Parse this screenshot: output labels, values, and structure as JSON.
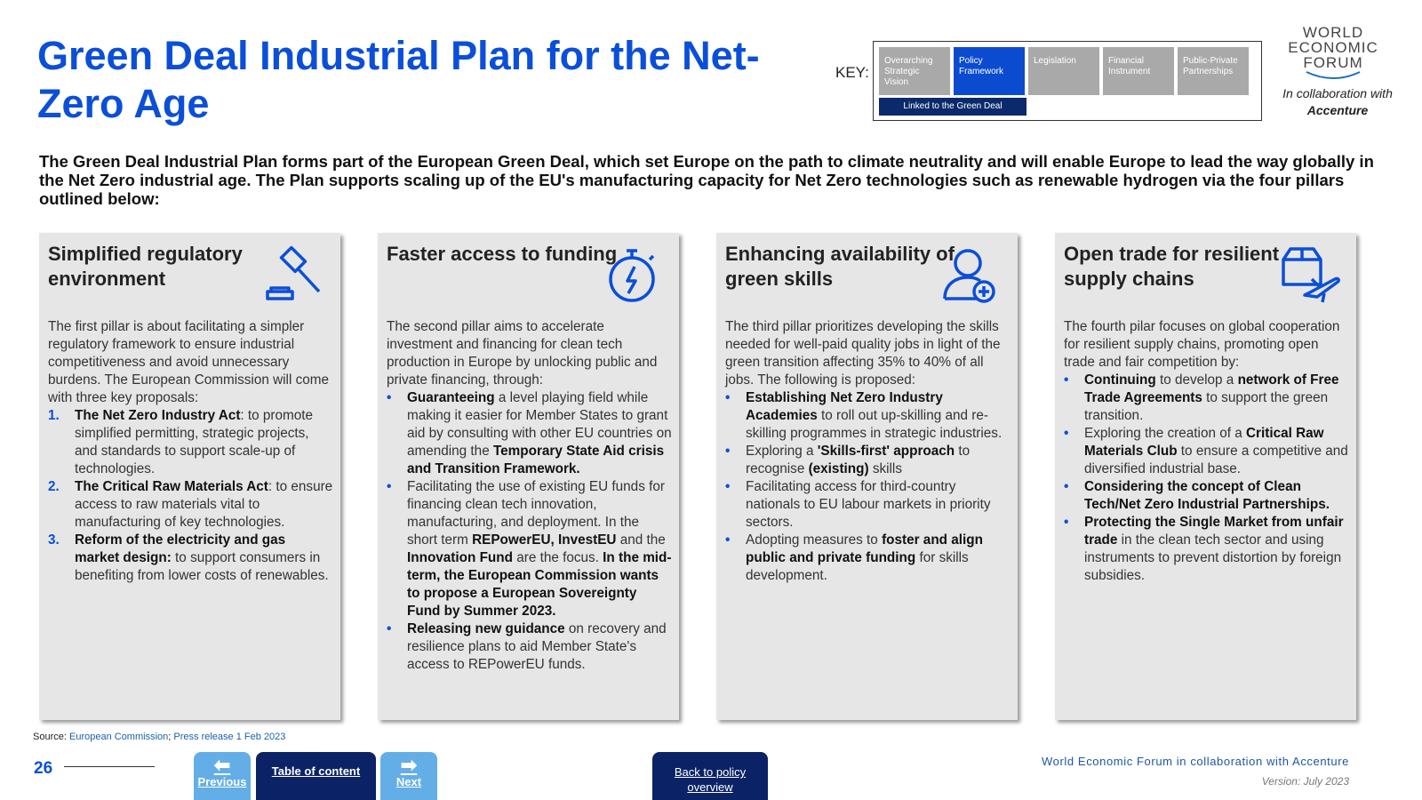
{
  "title": "Green Deal Industrial Plan for the Net-Zero Age",
  "key": {
    "label": "KEY:",
    "items": [
      "Overarching Strategic Vision",
      "Policy Framework",
      "Legislation",
      "Financial Instrument",
      "Public-Private Partnerships"
    ],
    "selected": "Policy Framework",
    "linked": "Linked to the Green Deal"
  },
  "logo": {
    "text": "WORLD ECONOMIC FORUM",
    "collab": "In collaboration with",
    "partner": "Accenture"
  },
  "intro": "The Green Deal Industrial Plan forms part of the European Green Deal, which set Europe on the path to climate neutrality and will enable Europe to lead the way globally in the Net Zero industrial age. The Plan supports scaling up of the EU's manufacturing capacity for Net Zero technologies such as renewable hydrogen via the four pillars outlined below:",
  "cards": [
    {
      "title": "Simplified regulatory environment",
      "icon": "gavel-icon",
      "intro": "The first pillar is about facilitating a simpler regulatory framework to ensure industrial competitiveness and avoid unnecessary burdens. The European Commission will come with three key proposals:",
      "list": "ol",
      "items": [
        [
          {
            "t": "The Net Zero Industry Act",
            "b": true
          },
          {
            "t": ": to promote simplified permitting, strategic projects, and standards to support scale-up of technologies."
          }
        ],
        [
          {
            "t": "The Critical Raw Materials Act",
            "b": true
          },
          {
            "t": ": to ensure access to raw materials vital to manufacturing of key technologies."
          }
        ],
        [
          {
            "t": "Reform of the electricity and gas market design:",
            "b": true
          },
          {
            "t": " to support consumers in benefiting from lower costs of renewables."
          }
        ]
      ]
    },
    {
      "title": "Faster access to funding",
      "icon": "stopwatch-icon",
      "intro": "The second pillar aims to accelerate investment and financing for clean tech production in Europe by unlocking public and private financing, through:",
      "list": "ul",
      "items": [
        [
          {
            "t": "Guaranteeing",
            "b": true
          },
          {
            "t": " a level playing field while making it easier for Member States to grant aid by consulting with other EU countries on amending the "
          },
          {
            "t": "Temporary State Aid crisis and Transition Framework.",
            "b": true
          }
        ],
        [
          {
            "t": "Facilitating the use of existing EU funds for financing clean tech innovation, manufacturing, and deployment. In the short term "
          },
          {
            "t": "REPowerEU, InvestEU",
            "b": true
          },
          {
            "t": " and the "
          },
          {
            "t": "Innovation Fund",
            "b": true
          },
          {
            "t": " are the focus. "
          },
          {
            "t": "In the mid-term, the European Commission wants to propose a European Sovereignty Fund by Summer 2023.",
            "b": true
          }
        ],
        [
          {
            "t": "Releasing new guidance",
            "b": true
          },
          {
            "t": " on recovery and resilience plans to aid Member State's access to REPowerEU funds."
          }
        ]
      ]
    },
    {
      "title": "Enhancing availability of green skills",
      "icon": "user-add-icon",
      "intro": "The third pillar prioritizes developing the skills needed for well-paid quality jobs in light of the green transition affecting 35% to 40% of all jobs. The following is proposed:",
      "list": "ul",
      "items": [
        [
          {
            "t": "Establishing Net Zero Industry Academies",
            "b": true
          },
          {
            "t": " to roll out up-skilling and re-skilling programmes in strategic industries."
          }
        ],
        [
          {
            "t": "Exploring a "
          },
          {
            "t": "'Skills-first' approach",
            "b": true
          },
          {
            "t": " to recognise "
          },
          {
            "t": "(existing)",
            "b": true
          },
          {
            "t": " skills"
          }
        ],
        [
          {
            "t": "Facilitating access for third-country nationals to EU labour markets in priority sectors."
          }
        ],
        [
          {
            "t": "Adopting measures to "
          },
          {
            "t": "foster and align public and private funding",
            "b": true
          },
          {
            "t": " for skills development."
          }
        ]
      ]
    },
    {
      "title": "Open trade for resilient supply chains",
      "icon": "package-plane-icon",
      "intro": "The fourth pilar focuses on global cooperation for resilient supply chains, promoting open trade and fair competition by:",
      "list": "ul",
      "items": [
        [
          {
            "t": "Continuing",
            "b": true
          },
          {
            "t": " to develop a "
          },
          {
            "t": "network of Free Trade Agreements",
            "b": true
          },
          {
            "t": " to support the green transition."
          }
        ],
        [
          {
            "t": "Exploring the creation of a "
          },
          {
            "t": "Critical Raw Materials Club",
            "b": true
          },
          {
            "t": " to ensure a competitive and diversified industrial base."
          }
        ],
        [
          {
            "t": "Considering the concept of Clean Tech/Net Zero Industrial Partnerships.",
            "b": true
          }
        ],
        [
          {
            "t": "Protecting the Single Market from unfair trade",
            "b": true
          },
          {
            "t": " in the clean tech sector and using instruments to prevent distortion by foreign subsidies."
          }
        ]
      ]
    }
  ],
  "source": {
    "label": "Source:",
    "links": [
      "European Commission",
      "Press release 1 Feb 2023"
    ]
  },
  "footer": {
    "page": "26",
    "previous": "Previous",
    "toc": "Table of content",
    "next": "Next",
    "back": "Back to policy overview",
    "org": "World Economic Forum in collaboration with Accenture",
    "version": "Version: July 2023"
  }
}
